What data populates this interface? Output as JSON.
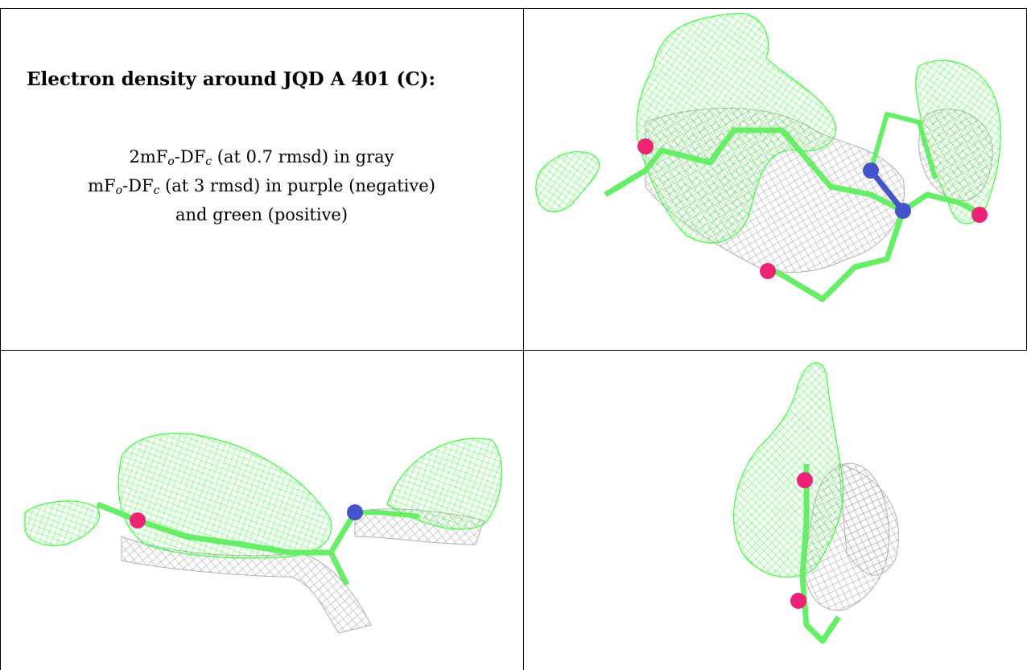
{
  "caption": {
    "title": "Electron density around JQD A 401 (C):",
    "line1": "2mFₒ-DFᶜ (at 0.7 rmsd) in gray",
    "line2": "mFₒ-DFᶜ (at 3 rmsd) in purple (negative)",
    "line3": "and green (positive)"
  },
  "colors": {
    "positive_density": "#33ff33",
    "twofo_density": "#a0a0a0",
    "carbon_stick": "#66ee66",
    "oxygen": "#ee2277",
    "nitrogen": "#4455cc"
  },
  "panels": [
    "top-right view",
    "bottom-left view",
    "bottom-right view"
  ]
}
